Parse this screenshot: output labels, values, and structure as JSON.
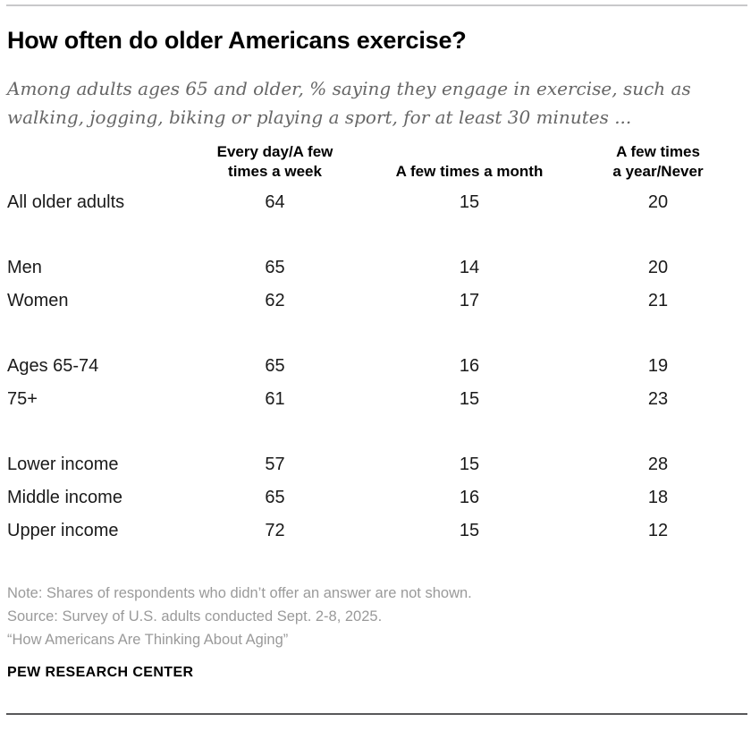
{
  "chart_data": {
    "type": "table",
    "title": "How often do older Americans exercise?",
    "subtitle": "Among adults ages 65 and older, % saying they engage in exercise, such as walking, jogging, biking or playing a sport, for at least 30 minutes ...",
    "columns": [
      "Every day/A few\ntimes a week",
      "A few times a month",
      "A few times\na year/Never"
    ],
    "rows": [
      {
        "group": 1,
        "label": "All older adults",
        "values": [
          64,
          15,
          20
        ]
      },
      {
        "group": 2,
        "label": "Men",
        "values": [
          65,
          14,
          20
        ]
      },
      {
        "group": 2,
        "label": "Women",
        "values": [
          62,
          17,
          21
        ]
      },
      {
        "group": 3,
        "label": "Ages 65-74",
        "values": [
          65,
          16,
          19
        ]
      },
      {
        "group": 3,
        "label": "75+",
        "values": [
          61,
          15,
          23
        ]
      },
      {
        "group": 4,
        "label": "Lower income",
        "values": [
          57,
          15,
          28
        ]
      },
      {
        "group": 4,
        "label": "Middle income",
        "values": [
          65,
          16,
          18
        ]
      },
      {
        "group": 4,
        "label": "Upper income",
        "values": [
          72,
          15,
          12
        ]
      }
    ],
    "note": "Note: Shares of respondents who didn’t offer an answer are not shown.",
    "source": "Source: Survey of U.S. adults conducted Sept. 2-8, 2025.",
    "report": "“How Americans Are Thinking About Aging”"
  },
  "footer": {
    "brand": "PEW RESEARCH CENTER"
  },
  "colors": {
    "title": "#000000",
    "subtitle": "#666666",
    "note": "#9a9a9a",
    "top_rule": "#c8c8ca",
    "bottom_rule": "#58585a"
  }
}
